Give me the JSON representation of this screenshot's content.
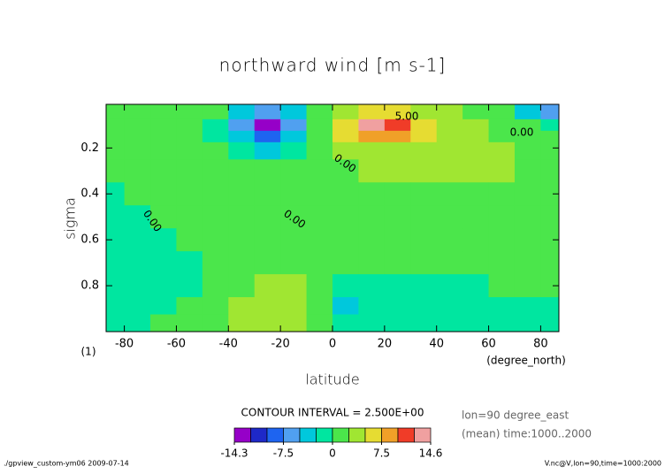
{
  "chart_data": {
    "type": "contour",
    "title": "northward wind [m s-1]",
    "x_label": "latitude",
    "y_label": "sigma",
    "x_unit": "(degree_north)",
    "y_unit": "(1)",
    "x": [
      -85,
      -75,
      -65,
      -55,
      -45,
      -35,
      -25,
      -15,
      -5,
      5,
      15,
      25,
      35,
      45,
      55,
      65,
      75,
      85
    ],
    "y": [
      0.05,
      0.1,
      0.15,
      0.2,
      0.3,
      0.4,
      0.5,
      0.6,
      0.7,
      0.8,
      0.9,
      0.95
    ],
    "z": [
      [
        1,
        1,
        1,
        1,
        0.5,
        -3,
        -6,
        -3,
        0.5,
        4,
        7,
        6,
        4,
        3,
        2,
        1,
        -4,
        -7
      ],
      [
        1,
        1,
        1,
        1,
        -1,
        -6,
        -14,
        -7,
        0.5,
        6,
        14,
        12,
        6,
        4,
        3,
        1.5,
        0.5,
        -1
      ],
      [
        1,
        1,
        1,
        1,
        -1,
        -4,
        -9,
        -5,
        0.5,
        5,
        9,
        8,
        5,
        4,
        3,
        2,
        1,
        1
      ],
      [
        1,
        1,
        1,
        1,
        0.5,
        -2,
        -3,
        -2,
        1,
        3,
        4,
        4,
        3.5,
        3,
        3,
        2.5,
        1.5,
        1
      ],
      [
        1,
        1,
        1,
        1,
        1,
        1,
        0.5,
        0.5,
        1,
        2,
        3,
        3,
        3,
        3,
        3,
        2.5,
        1.5,
        1
      ],
      [
        -1,
        1,
        1,
        1,
        1,
        1,
        1,
        1,
        1,
        1,
        2,
        2,
        2,
        2,
        2,
        2,
        1,
        1
      ],
      [
        -1,
        -1,
        1,
        1,
        1,
        1,
        1,
        1,
        1,
        1,
        1,
        1,
        1,
        1,
        1,
        1,
        1,
        1
      ],
      [
        -1,
        -1,
        -1,
        1,
        1,
        1,
        1,
        1,
        1,
        1,
        1,
        1,
        1,
        1,
        1,
        1,
        1,
        1
      ],
      [
        -1,
        -1,
        -1,
        -1,
        1,
        1,
        1,
        1,
        1,
        1,
        1,
        1,
        1,
        1,
        1,
        1,
        1,
        1
      ],
      [
        -1,
        -1,
        -1,
        -1,
        1,
        1,
        3,
        3,
        1,
        -1,
        -1,
        -1,
        -1,
        -1,
        -1,
        1,
        1,
        1
      ],
      [
        -1,
        -1,
        -1,
        1,
        1,
        3,
        4,
        3,
        1,
        -3,
        -1,
        -1,
        -1,
        -1,
        -1,
        -1,
        -1,
        -1
      ],
      [
        -1,
        -1,
        1,
        1,
        1,
        3,
        3,
        3,
        1,
        -1,
        -1,
        -1,
        -1,
        -1,
        -1,
        -1,
        -1,
        -1
      ]
    ],
    "xlim": [
      -87,
      87
    ],
    "ylim": [
      1.0,
      0.01
    ],
    "xticks": [
      -80,
      -60,
      -40,
      -20,
      0,
      20,
      40,
      60,
      80
    ],
    "yticks": [
      0.2,
      0.4,
      0.6,
      0.8
    ],
    "levels": [
      -14.3,
      -12.5,
      -10,
      -7.5,
      -5,
      -2.5,
      0,
      2.5,
      5,
      7.5,
      10,
      12.5,
      14.6
    ],
    "colors": [
      "#9600c8",
      "#1e28c8",
      "#1e64f0",
      "#50a0f0",
      "#00c8dc",
      "#00e6a0",
      "#4be64b",
      "#a0e632",
      "#e6dc32",
      "#f0a028",
      "#f03c28",
      "#f0a0a0"
    ],
    "colorbar_ticks": [
      -14.3,
      -7.5,
      0,
      7.5,
      14.6
    ],
    "contour_interval_label": "CONTOUR INTERVAL = 2.500E+00",
    "contour_labels": [
      "5.00",
      "0.00",
      "0.00",
      "0.00",
      "0.00"
    ],
    "notes": [
      "lon=90 degree_east",
      "(mean) time:1000..2000"
    ],
    "footer_left": "./gpview_custom-ym06  2009-07-14",
    "footer_right": "V.nc@V,lon=90,time=1000:2000"
  }
}
